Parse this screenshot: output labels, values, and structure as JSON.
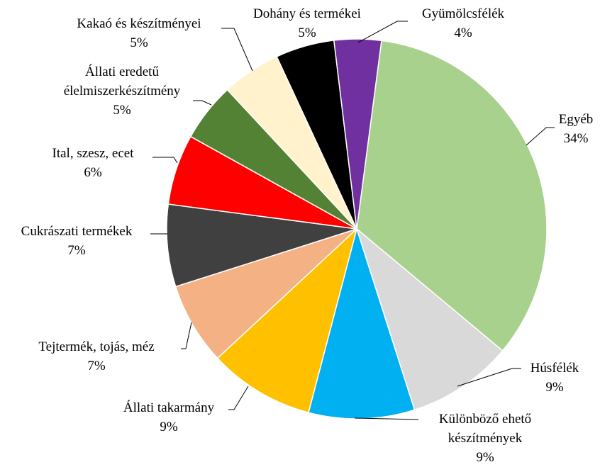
{
  "chart_data": {
    "type": "pie",
    "categories": [
      "Egyéb",
      "Húsfélék",
      "Különböző ehető készítmények",
      "Állati takarmány",
      "Tejtermék, tojás, méz",
      "Cukrászati termékek",
      "Ital, szesz, ecet",
      "Állati eredetű élelmiszerkészítmény",
      "Kakaó és készítményei",
      "Dohány és termékei",
      "Gyümölcsfélék"
    ],
    "values": [
      34,
      9,
      9,
      9,
      7,
      7,
      6,
      5,
      5,
      5,
      4
    ],
    "value_labels": [
      "34%",
      "9%",
      "9%",
      "9%",
      "7%",
      "7%",
      "6%",
      "5%",
      "5%",
      "5%",
      "4%"
    ],
    "colors": [
      "#a9d18e",
      "#d9d9d9",
      "#00b0f0",
      "#ffc000",
      "#f4b183",
      "#404040",
      "#ff0000",
      "#548235",
      "#fff2cc",
      "#000000",
      "#7030a0"
    ]
  }
}
